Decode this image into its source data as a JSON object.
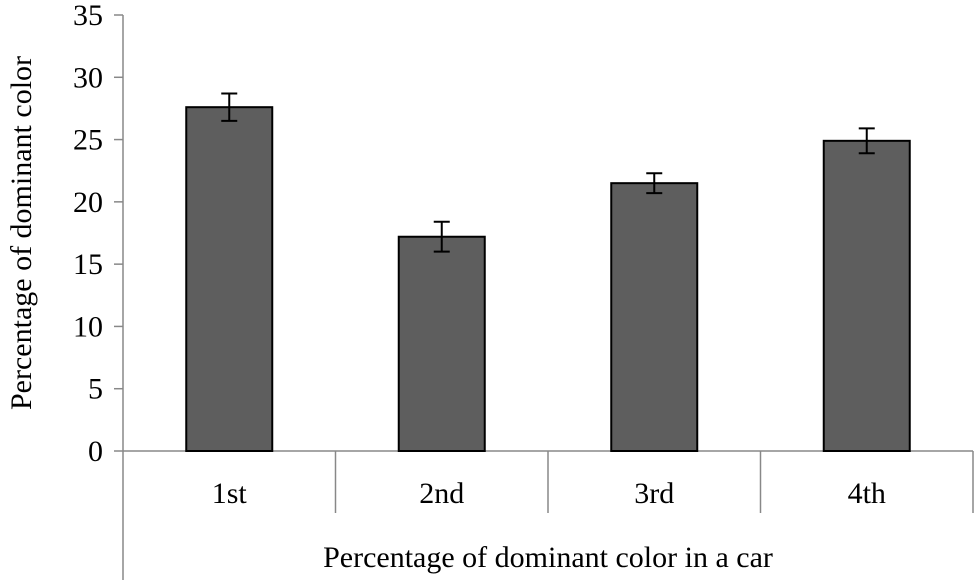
{
  "chart_data": {
    "type": "bar",
    "title": "",
    "xlabel": "Percentage of dominant color in a car",
    "ylabel": "Percentage of dominant color",
    "categories": [
      "1st",
      "2nd",
      "3rd",
      "4th"
    ],
    "values": [
      27.6,
      17.2,
      21.5,
      24.9
    ],
    "error": [
      1.1,
      1.2,
      0.8,
      1.0
    ],
    "ylim": [
      0,
      35
    ],
    "yticks": [
      "0",
      "5",
      "10",
      "15",
      "20",
      "25",
      "30",
      "35"
    ],
    "grid": false,
    "legend": "none",
    "colors": {
      "bar": "#5e5e5e",
      "bar_edge": "#000000",
      "axis": "#888888"
    }
  }
}
